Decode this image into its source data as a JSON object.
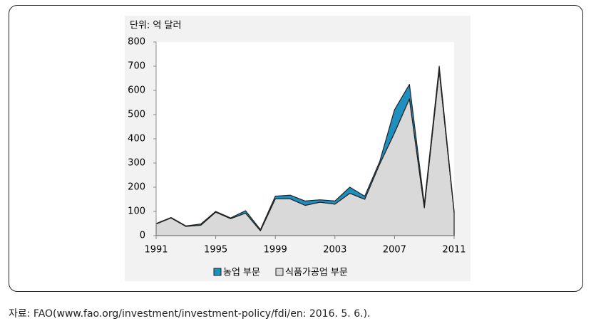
{
  "chart_data": {
    "type": "area",
    "stacked": true,
    "unit_label": "단위: 억 달러",
    "x": [
      1991,
      1992,
      1993,
      1994,
      1995,
      1996,
      1997,
      1998,
      1999,
      2000,
      2001,
      2002,
      2003,
      2004,
      2005,
      2006,
      2007,
      2008,
      2009,
      2010,
      2011
    ],
    "series": [
      {
        "name": "농업 부문",
        "color": "#1f8fc0",
        "values": [
          2,
          2,
          2,
          5,
          3,
          3,
          10,
          5,
          11,
          15,
          18,
          10,
          13,
          25,
          13,
          10,
          95,
          60,
          15,
          20,
          5
        ]
      },
      {
        "name": "식품가공업 부문",
        "color": "#d9d9d9",
        "values": [
          48,
          73,
          38,
          43,
          97,
          70,
          93,
          20,
          152,
          152,
          125,
          138,
          130,
          175,
          150,
          295,
          425,
          565,
          115,
          680,
          95
        ]
      }
    ],
    "xlim": [
      1991,
      2011
    ],
    "xticks": [
      1991,
      1995,
      1999,
      2003,
      2007,
      2011
    ],
    "ylim": [
      0,
      800
    ],
    "yticks": [
      0,
      100,
      200,
      300,
      400,
      500,
      600,
      700,
      800
    ]
  },
  "source": "자료: FAO(www.fao.org/investment/investment-policy/fdi/en: 2016. 5. 6.)."
}
